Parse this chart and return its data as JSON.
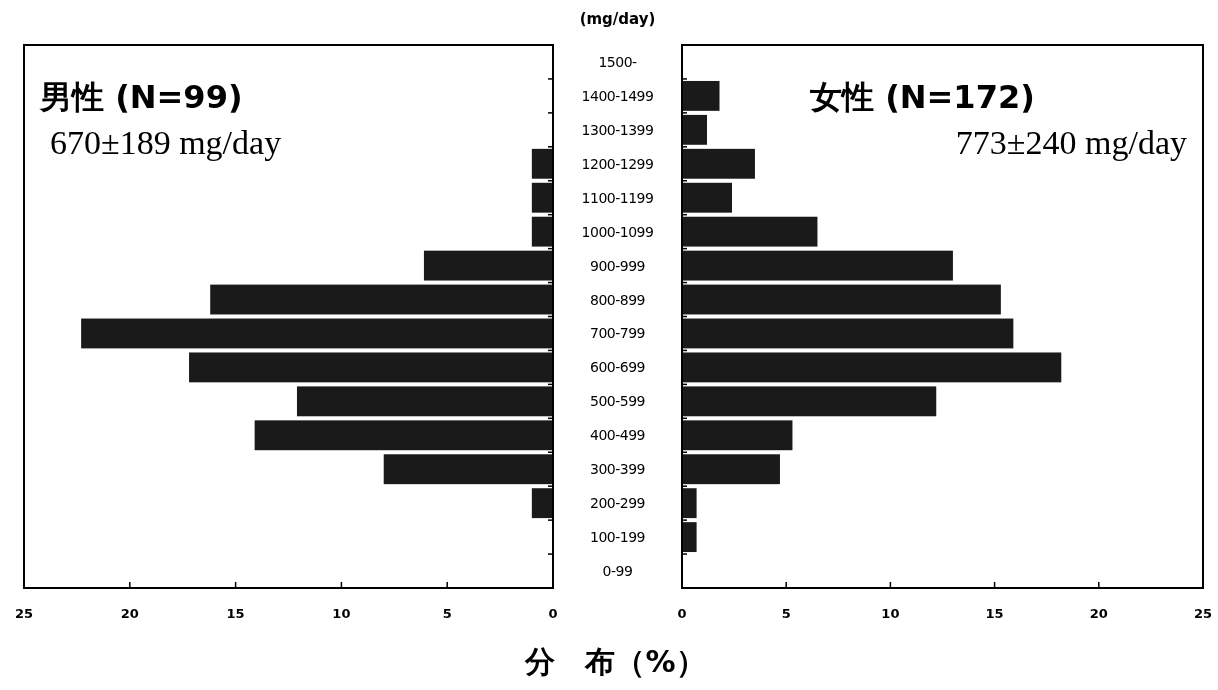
{
  "chart_data": [
    {
      "type": "bar",
      "orientation": "horizontal",
      "categories": [
        "1500-",
        "1400-1499",
        "1300-1399",
        "1200-1299",
        "1100-1199",
        "1000-1099",
        "900-999",
        "800-899",
        "700-799",
        "600-699",
        "500-599",
        "400-499",
        "300-399",
        "200-299",
        "100-199",
        "0-99"
      ],
      "values": [
        0,
        0,
        0,
        1.0,
        1.0,
        1.0,
        6.1,
        16.2,
        22.3,
        17.2,
        12.1,
        14.1,
        8.0,
        1.0,
        0,
        0
      ],
      "color": "#1a1a1a",
      "xlim": [
        25,
        0
      ],
      "xticks": [
        25,
        20,
        15,
        10,
        5,
        0
      ],
      "tick_labels": "x",
      "xlabel": "分　布（%）",
      "annotations": [
        "男性 (N=99)",
        "670±189 mg/day"
      ]
    },
    {
      "type": "bar",
      "orientation": "horizontal",
      "categories": [
        "1500-",
        "1400-1499",
        "1300-1399",
        "1200-1299",
        "1100-1199",
        "1000-1099",
        "900-999",
        "800-899",
        "700-799",
        "600-699",
        "500-599",
        "400-499",
        "300-399",
        "200-299",
        "100-199",
        "0-99"
      ],
      "values": [
        0,
        1.8,
        1.2,
        3.5,
        2.4,
        6.5,
        13.0,
        15.3,
        15.9,
        18.2,
        12.2,
        5.3,
        4.7,
        0.7,
        0.7,
        0
      ],
      "color": "#1a1a1a",
      "xlim": [
        0,
        25
      ],
      "xticks": [
        0,
        5,
        10,
        15,
        20,
        25
      ],
      "ylabel": "(mg/day)",
      "annotations": [
        "女性 (N=172)",
        "773±240 mg/day"
      ]
    }
  ]
}
